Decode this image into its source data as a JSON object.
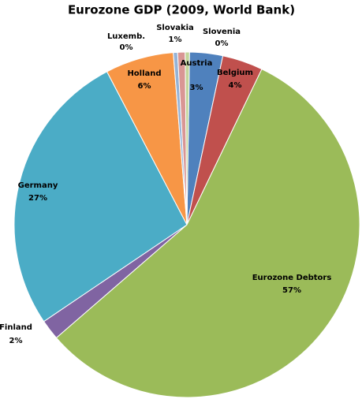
{
  "chart_data": {
    "type": "pie",
    "title": "Eurozone GDP (2009, World Bank)",
    "categories": [
      "Austria",
      "Belgium",
      "Eurozone Debtors",
      "Finland",
      "Germany",
      "Holland",
      "Luxemb.",
      "Slovakia",
      "Slovenia"
    ],
    "values": [
      3.1,
      3.8,
      56.5,
      1.9,
      26.8,
      6.4,
      0.4,
      0.7,
      0.4
    ],
    "value_labels": [
      "3%",
      "4%",
      "57%",
      "2%",
      "27%",
      "6%",
      "0%",
      "1%",
      "0%"
    ],
    "colors": [
      "#4f81bd",
      "#c0504d",
      "#9bbb59",
      "#8064a2",
      "#4bacc6",
      "#f79646",
      "#95b3d7",
      "#d99694",
      "#c3d69b"
    ]
  }
}
